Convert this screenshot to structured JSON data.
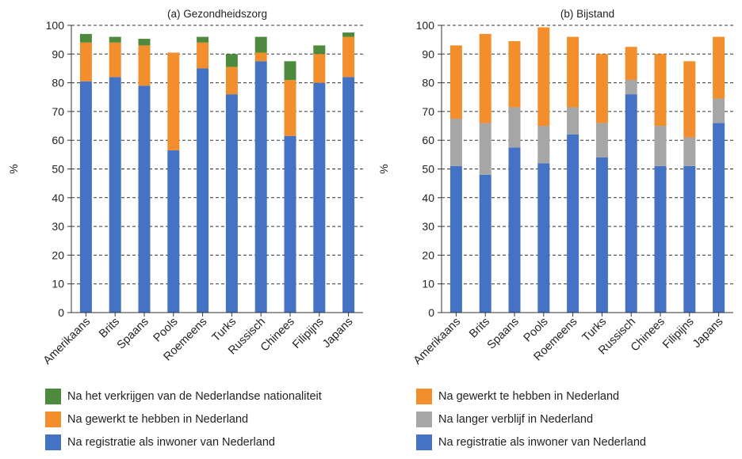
{
  "chart_data": [
    {
      "type": "bar",
      "stacked": true,
      "title": "(a) Gezondheidszorg",
      "ylabel": "%",
      "ylim": [
        0,
        100
      ],
      "yticks": [
        0,
        10,
        20,
        30,
        40,
        50,
        60,
        70,
        80,
        90,
        100
      ],
      "grid": "dashed-horizontal",
      "categories": [
        "Amerikaans",
        "Brits",
        "Spaans",
        "Pools",
        "Roemeens",
        "Turks",
        "Russisch",
        "Chinees",
        "Filipijns",
        "Japans"
      ],
      "series": [
        {
          "name": "Na registratie als inwoner van Nederland",
          "color": "#4472c4",
          "values": [
            80.5,
            82,
            79,
            56.5,
            85,
            76,
            87.5,
            61.5,
            80,
            82
          ]
        },
        {
          "name": "Na gewerkt te hebben in Nederland",
          "color": "#f28e2b",
          "values": [
            13.5,
            12,
            14,
            34,
            9,
            9.5,
            3,
            19.5,
            10,
            14
          ]
        },
        {
          "name": "Na het verkrijgen van de Nederlandse nationaliteit",
          "color": "#4e8a3e",
          "values": [
            3,
            2,
            2.3,
            0,
            2,
            4.5,
            5.5,
            6.5,
            3,
            1.5
          ]
        }
      ],
      "legend": {
        "position": "bottom-left",
        "order": [
          "Na het verkrijgen van de Nederlandse nationaliteit",
          "Na gewerkt te hebben in Nederland",
          "Na registratie als inwoner van Nederland"
        ]
      }
    },
    {
      "type": "bar",
      "stacked": true,
      "title": "(b) Bijstand",
      "ylabel": "%",
      "ylim": [
        0,
        100
      ],
      "yticks": [
        0,
        10,
        20,
        30,
        40,
        50,
        60,
        70,
        80,
        90,
        100
      ],
      "grid": "dashed-horizontal",
      "categories": [
        "Amerikaans",
        "Brits",
        "Spaans",
        "Pools",
        "Roemeens",
        "Turks",
        "Russisch",
        "Chinees",
        "Filipijns",
        "Japans"
      ],
      "series": [
        {
          "name": "Na registratie als inwoner van Nederland",
          "color": "#4472c4",
          "values": [
            51,
            48,
            57.5,
            52,
            62,
            54,
            76,
            51,
            51,
            66
          ]
        },
        {
          "name": "Na langer verblijf in Nederland",
          "color": "#a6a6a6",
          "values": [
            16.5,
            18,
            14,
            13,
            9.5,
            12,
            5,
            14,
            10,
            8.5
          ]
        },
        {
          "name": "Na gewerkt te hebben in Nederland",
          "color": "#f28e2b",
          "values": [
            25.5,
            31,
            23,
            34.3,
            24.5,
            24,
            11.5,
            25,
            26.5,
            21.5
          ]
        }
      ],
      "legend": {
        "position": "bottom-right",
        "order": [
          "Na gewerkt te hebben in Nederland",
          "Na langer verblijf in Nederland",
          "Na registratie als inwoner van Nederland"
        ]
      }
    }
  ]
}
